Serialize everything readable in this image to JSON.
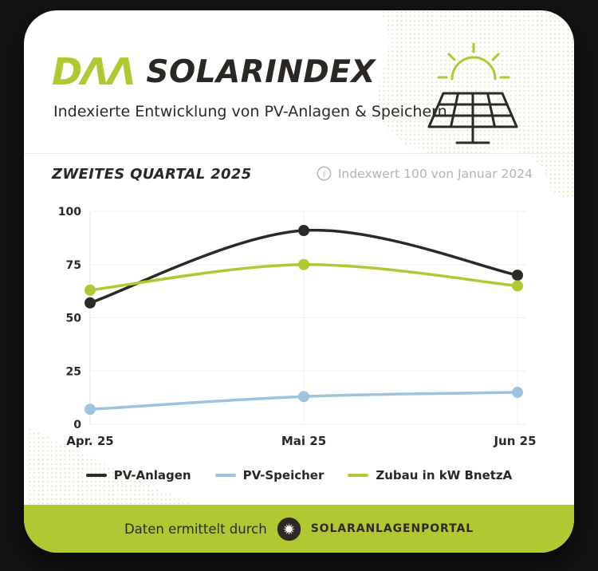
{
  "header": {
    "logo_text": "DΛΛ",
    "title": "SOLARINDEX",
    "subtitle": "Indexierte Entwicklung von PV-Anlagen & Speichern"
  },
  "section": {
    "title": "ZWEITES QUARTAL 2025",
    "info_note": "Indexwert 100 von Januar 2024"
  },
  "chart_data": {
    "type": "line",
    "title": "Zweites Quartal 2025",
    "categories": [
      "Apr. 25",
      "Mai 25",
      "Jun 25"
    ],
    "series": [
      {
        "name": "PV-Anlagen",
        "color": "#2d2a26",
        "values": [
          57,
          91,
          70
        ]
      },
      {
        "name": "PV-Speicher",
        "color": "#9cc3e0",
        "values": [
          7,
          13,
          15
        ]
      },
      {
        "name": "Zubau in kW BnetzA",
        "color": "#b2c832",
        "values": [
          63,
          75,
          65
        ]
      }
    ],
    "xlabel": "",
    "ylabel": "",
    "ylim": [
      0,
      100
    ],
    "yticks": [
      0,
      25,
      50,
      75,
      100
    ],
    "grid": true,
    "legend_position": "bottom",
    "curve": "smooth"
  },
  "footer": {
    "text": "Daten ermittelt durch",
    "brand": "SOLARANLAGENPORTAL"
  },
  "colors": {
    "accent": "#b2c832",
    "dark": "#2d2a26",
    "blue": "#9cc3e0",
    "muted_text": "#b3b3b3",
    "gridline": "#efefef",
    "card_bg": "#ffffff",
    "page_bg": "#131313"
  },
  "icons": {
    "header_illustration": "solar-panel-sun-icon",
    "info": "info-circle-icon",
    "footer_logo": "sun-gear-icon"
  }
}
